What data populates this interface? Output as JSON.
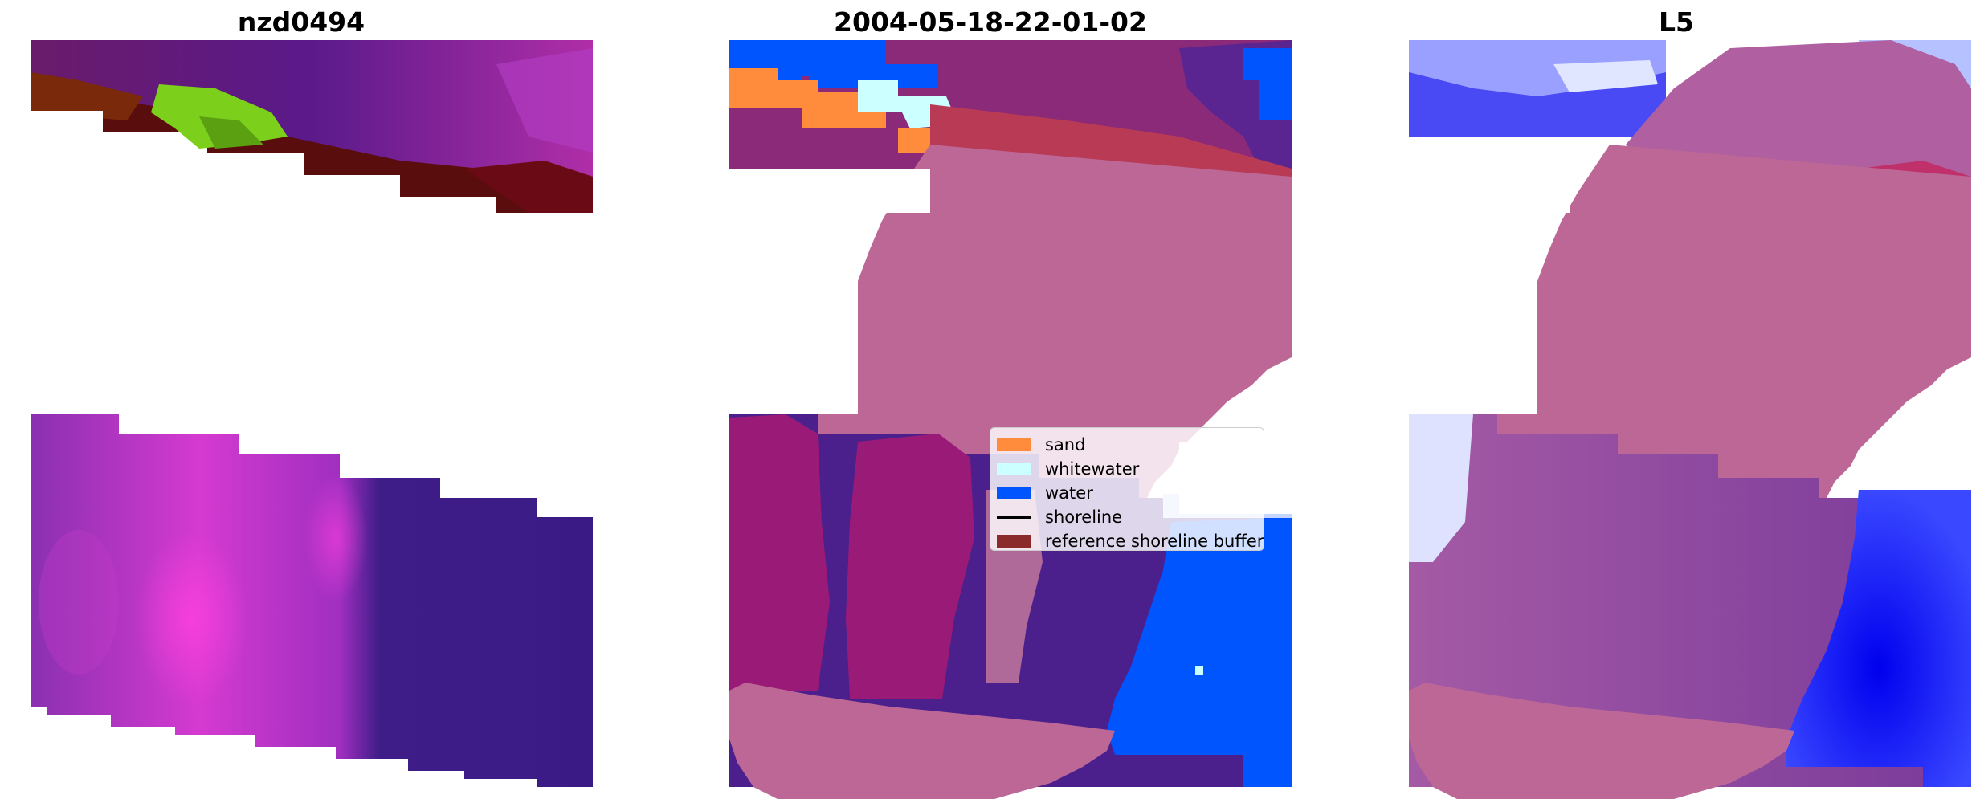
{
  "panels": [
    {
      "title": "nzd0494"
    },
    {
      "title": "2004-05-18-22-01-02"
    },
    {
      "title": "L5"
    }
  ],
  "legend": {
    "items": [
      {
        "label": "sand",
        "color": "#ff8c3c",
        "kind": "patch"
      },
      {
        "label": "whitewater",
        "color": "#ccffff",
        "kind": "patch"
      },
      {
        "label": "water",
        "color": "#0055ff",
        "kind": "patch"
      },
      {
        "label": "shoreline",
        "color": "#000000",
        "kind": "line"
      },
      {
        "label": "reference shoreline buffer",
        "color": "#8b2a2a",
        "kind": "patch"
      }
    ]
  },
  "colors": {
    "pink_overlay": "#bc6796",
    "dark_purple": "#4b1f8c",
    "magenta": "#c532c5",
    "dark_red": "#5a0d0d",
    "green": "#7ccf1a",
    "red_band": "#b9404b",
    "blue_water": "#2e33f0",
    "light_blue": "#c7d6ff"
  }
}
